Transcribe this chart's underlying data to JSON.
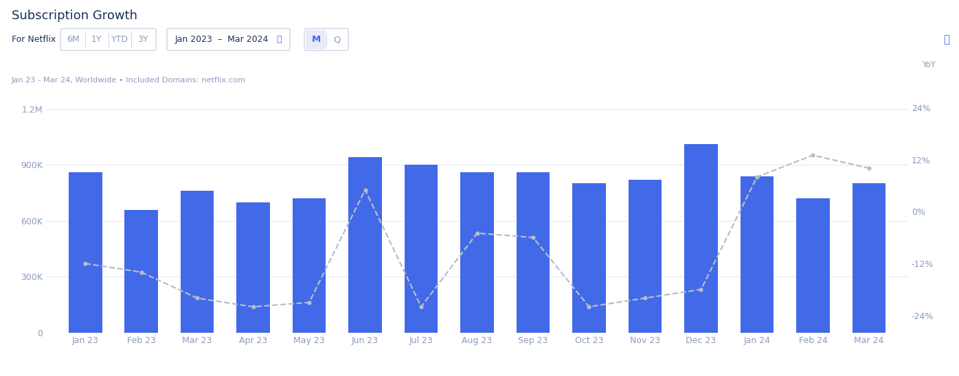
{
  "title": "Subscription Growth",
  "subtitle": "Jan 23 - Mar 24, Worldwide • Included Domains: netflix.com",
  "filter_label": "For Netflix",
  "filter_buttons": [
    "6M",
    "1Y",
    "YTD",
    "3Y"
  ],
  "date_range": "Jan 2023  –  Mar 2024",
  "period_buttons": [
    "M",
    "Q"
  ],
  "active_period": "M",
  "categories": [
    "Jan 23",
    "Feb 23",
    "Mar 23",
    "Apr 23",
    "May 23",
    "Jun 23",
    "Jul 23",
    "Aug 23",
    "Sep 23",
    "Oct 23",
    "Nov 23",
    "Dec 23",
    "Jan 24",
    "Feb 24",
    "Mar 24"
  ],
  "bar_values": [
    860000,
    660000,
    760000,
    700000,
    720000,
    940000,
    900000,
    860000,
    860000,
    800000,
    820000,
    1010000,
    840000,
    720000,
    800000
  ],
  "yoy_values": [
    -12,
    -14,
    -20,
    -22,
    -21,
    5,
    -22,
    -5,
    -6,
    -22,
    -20,
    -18,
    8,
    13,
    10
  ],
  "bar_color": "#4169E8",
  "line_color": "#b8bec8",
  "title_color": "#1a2e5a",
  "label_color": "#8a9abf",
  "filter_text_color": "#1a2e5a",
  "btn_border_color": "#d0d5e0",
  "active_btn_bg": "#e8eaf8",
  "active_btn_color": "#4169E8",
  "background_color": "#ffffff",
  "ylim_left": [
    0,
    1300000
  ],
  "ylim_right": [
    -28,
    28
  ],
  "yticks_left": [
    0,
    300000,
    600000,
    900000,
    1200000
  ],
  "yticks_left_labels": [
    "0",
    "300K",
    "600K",
    "900K",
    "1.2M"
  ],
  "yticks_right": [
    -24,
    -12,
    0,
    12,
    24
  ],
  "yticks_right_labels": [
    "-24%",
    "-12%",
    "0%",
    "12%",
    "24%"
  ],
  "grid_color": "#e8eaf0",
  "title_fontsize": 13,
  "axis_fontsize": 9,
  "yoy_label": "YoY"
}
